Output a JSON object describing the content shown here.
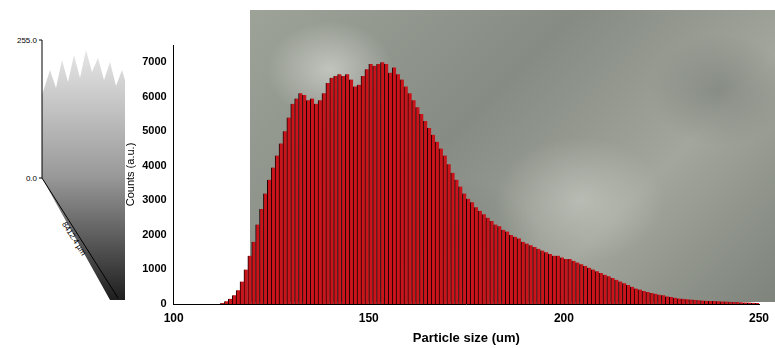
{
  "chart_data": {
    "type": "histogram",
    "xlabel": "Particle size (um)",
    "ylabel": "Counts (a.u.)",
    "bins": [
      112,
      113,
      114,
      115,
      116,
      117,
      118,
      119,
      120,
      121,
      122,
      123,
      124,
      125,
      126,
      127,
      128,
      129,
      130,
      131,
      132,
      133,
      134,
      135,
      136,
      137,
      138,
      139,
      140,
      141,
      142,
      143,
      144,
      145,
      146,
      147,
      148,
      149,
      150,
      151,
      152,
      153,
      154,
      155,
      156,
      157,
      158,
      159,
      160,
      161,
      162,
      163,
      164,
      165,
      166,
      167,
      168,
      169,
      170,
      171,
      172,
      173,
      174,
      175,
      176,
      177,
      178,
      179,
      180,
      181,
      182,
      183,
      184,
      185,
      186,
      187,
      188,
      189,
      190,
      191,
      192,
      193,
      194,
      195,
      196,
      197,
      198,
      199,
      200,
      201,
      202,
      203,
      204,
      205,
      206,
      207,
      208,
      209,
      210,
      211,
      212,
      213,
      214,
      215,
      216,
      217,
      218,
      219,
      220,
      221,
      222,
      223,
      224,
      225,
      226,
      227,
      228,
      229,
      230,
      231,
      232,
      233,
      234,
      235,
      236,
      237,
      238,
      239,
      240,
      241,
      242,
      243,
      244,
      245,
      246,
      247,
      248,
      249,
      250
    ],
    "values": [
      30,
      80,
      150,
      250,
      400,
      650,
      1000,
      1400,
      1800,
      2300,
      2750,
      3200,
      3600,
      3950,
      4300,
      4650,
      5000,
      5400,
      5800,
      5950,
      6100,
      6050,
      5900,
      5950,
      5800,
      5900,
      6100,
      6400,
      6550,
      6600,
      6650,
      6600,
      6650,
      6500,
      6300,
      6350,
      6600,
      6800,
      6950,
      6900,
      6950,
      7000,
      6950,
      6700,
      6850,
      6650,
      6500,
      6300,
      6100,
      5900,
      5700,
      5500,
      5300,
      5100,
      4900,
      4700,
      4500,
      4300,
      4050,
      3800,
      3600,
      3400,
      3200,
      3050,
      2950,
      2800,
      2700,
      2600,
      2500,
      2400,
      2300,
      2250,
      2150,
      2100,
      2000,
      1950,
      1900,
      1800,
      1750,
      1700,
      1650,
      1600,
      1550,
      1500,
      1450,
      1400,
      1400,
      1350,
      1300,
      1300,
      1250,
      1200,
      1150,
      1100,
      1050,
      1000,
      950,
      900,
      850,
      800,
      750,
      700,
      650,
      600,
      550,
      500,
      450,
      420,
      380,
      350,
      320,
      300,
      270,
      250,
      220,
      200,
      180,
      160,
      150,
      140,
      130,
      120,
      110,
      100,
      95,
      90,
      85,
      80,
      75,
      70,
      65,
      60,
      55,
      50,
      45,
      40,
      35,
      30
    ],
    "color": "#c8141a",
    "xlim": [
      100,
      250
    ],
    "xticks": [
      100,
      150,
      200,
      250
    ],
    "ylim": [
      0,
      7500
    ],
    "yticks": [
      0,
      1000,
      2000,
      3000,
      4000,
      5000,
      6000,
      7000
    ],
    "grid": false
  },
  "inset": {
    "type": "surface",
    "zticks": [
      {
        "value": 255,
        "label": "255.0"
      },
      {
        "value": 0,
        "label": "0.0"
      }
    ],
    "axis_label": "8412.4 µm"
  }
}
